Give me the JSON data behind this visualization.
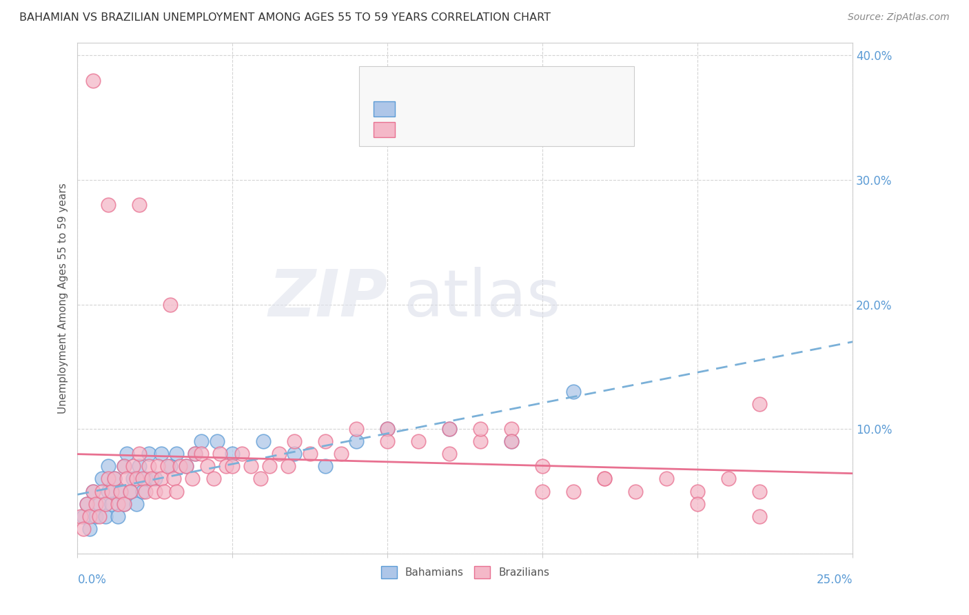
{
  "title": "BAHAMIAN VS BRAZILIAN UNEMPLOYMENT AMONG AGES 55 TO 59 YEARS CORRELATION CHART",
  "source": "Source: ZipAtlas.com",
  "ylabel": "Unemployment Among Ages 55 to 59 years",
  "xlim": [
    0.0,
    0.25
  ],
  "ylim": [
    0.0,
    0.41
  ],
  "yticks": [
    0.0,
    0.1,
    0.2,
    0.3,
    0.4
  ],
  "ytick_labels": [
    "",
    "10.0%",
    "20.0%",
    "30.0%",
    "40.0%"
  ],
  "bahamian_color": "#aec6e8",
  "bahamian_edge": "#5b9bd5",
  "brazilian_color": "#f4b8c8",
  "brazilian_edge": "#e87090",
  "trend_blue_color": "#7ab0d8",
  "trend_pink_color": "#e87090",
  "legend_text_color": "#4472c4",
  "watermark_zip_color": "#e8e8f0",
  "watermark_atlas_color": "#dde0e8",
  "background_color": "#ffffff",
  "grid_color": "#d0d0d0",
  "spine_color": "#cccccc",
  "ytick_color": "#5b9bd5",
  "xlabel_color": "#5b9bd5",
  "title_color": "#333333",
  "source_color": "#888888",
  "ylabel_color": "#555555",
  "bahamian_x": [
    0.002,
    0.003,
    0.004,
    0.005,
    0.006,
    0.007,
    0.008,
    0.009,
    0.01,
    0.01,
    0.011,
    0.012,
    0.013,
    0.014,
    0.015,
    0.015,
    0.016,
    0.017,
    0.018,
    0.019,
    0.02,
    0.021,
    0.022,
    0.023,
    0.025,
    0.027,
    0.03,
    0.032,
    0.035,
    0.038,
    0.04,
    0.045,
    0.05,
    0.06,
    0.07,
    0.08,
    0.09,
    0.1,
    0.12,
    0.14,
    0.16
  ],
  "bahamian_y": [
    0.03,
    0.04,
    0.02,
    0.05,
    0.03,
    0.04,
    0.06,
    0.03,
    0.05,
    0.07,
    0.04,
    0.06,
    0.03,
    0.05,
    0.07,
    0.04,
    0.08,
    0.05,
    0.06,
    0.04,
    0.07,
    0.05,
    0.06,
    0.08,
    0.06,
    0.08,
    0.07,
    0.08,
    0.07,
    0.08,
    0.09,
    0.09,
    0.08,
    0.09,
    0.08,
    0.07,
    0.09,
    0.1,
    0.1,
    0.09,
    0.13
  ],
  "brazilian_x": [
    0.001,
    0.002,
    0.003,
    0.004,
    0.005,
    0.005,
    0.006,
    0.007,
    0.008,
    0.009,
    0.01,
    0.01,
    0.011,
    0.012,
    0.013,
    0.014,
    0.015,
    0.015,
    0.016,
    0.017,
    0.018,
    0.019,
    0.02,
    0.02,
    0.021,
    0.022,
    0.023,
    0.024,
    0.025,
    0.026,
    0.027,
    0.028,
    0.029,
    0.03,
    0.031,
    0.032,
    0.033,
    0.035,
    0.037,
    0.038,
    0.04,
    0.042,
    0.044,
    0.046,
    0.048,
    0.05,
    0.053,
    0.056,
    0.059,
    0.062,
    0.065,
    0.068,
    0.07,
    0.075,
    0.08,
    0.085,
    0.09,
    0.1,
    0.11,
    0.12,
    0.13,
    0.14,
    0.15,
    0.16,
    0.17,
    0.18,
    0.19,
    0.2,
    0.21,
    0.22,
    0.1,
    0.12,
    0.13,
    0.14,
    0.15,
    0.17,
    0.2,
    0.22,
    0.22
  ],
  "brazilian_y": [
    0.03,
    0.02,
    0.04,
    0.03,
    0.05,
    0.38,
    0.04,
    0.03,
    0.05,
    0.04,
    0.06,
    0.28,
    0.05,
    0.06,
    0.04,
    0.05,
    0.07,
    0.04,
    0.06,
    0.05,
    0.07,
    0.06,
    0.08,
    0.28,
    0.06,
    0.05,
    0.07,
    0.06,
    0.05,
    0.07,
    0.06,
    0.05,
    0.07,
    0.2,
    0.06,
    0.05,
    0.07,
    0.07,
    0.06,
    0.08,
    0.08,
    0.07,
    0.06,
    0.08,
    0.07,
    0.07,
    0.08,
    0.07,
    0.06,
    0.07,
    0.08,
    0.07,
    0.09,
    0.08,
    0.09,
    0.08,
    0.1,
    0.1,
    0.09,
    0.1,
    0.09,
    0.1,
    0.07,
    0.05,
    0.06,
    0.05,
    0.06,
    0.05,
    0.06,
    0.05,
    0.09,
    0.08,
    0.1,
    0.09,
    0.05,
    0.06,
    0.04,
    0.12,
    0.03
  ]
}
